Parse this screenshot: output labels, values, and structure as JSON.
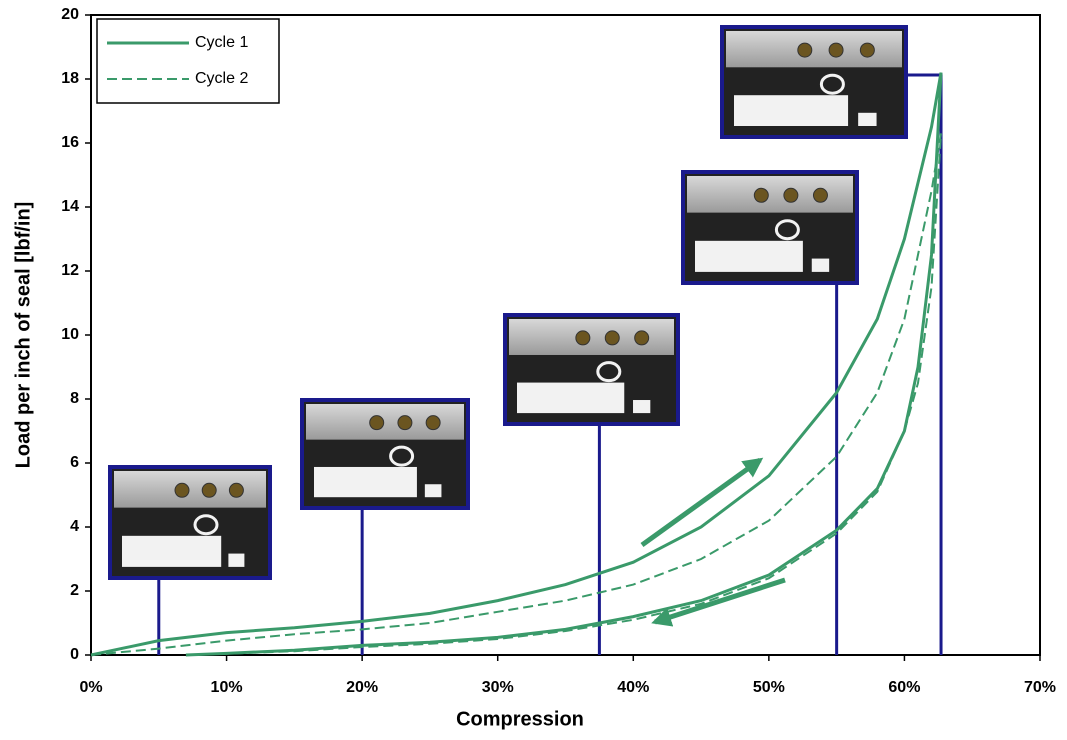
{
  "chart_data": {
    "type": "line",
    "x_label": "Compression",
    "y_label": "Load per inch of seal [lbf/in]",
    "xlim": [
      0,
      70
    ],
    "ylim": [
      0,
      20
    ],
    "xticks": [
      {
        "value": 0,
        "label": "0%"
      },
      {
        "value": 10,
        "label": "10%"
      },
      {
        "value": 20,
        "label": "20%"
      },
      {
        "value": 30,
        "label": "30%"
      },
      {
        "value": 40,
        "label": "40%"
      },
      {
        "value": 50,
        "label": "50%"
      },
      {
        "value": 60,
        "label": "60%"
      },
      {
        "value": 70,
        "label": "70%"
      }
    ],
    "yticks": [
      0,
      2,
      4,
      6,
      8,
      10,
      12,
      14,
      16,
      18,
      20
    ],
    "markers": [
      5,
      20,
      37.5,
      55,
      62.7
    ],
    "marker_color": "#1a1a8c",
    "legend_position": "upper left",
    "series": [
      {
        "name": "Cycle 1",
        "color": "#3a9a6a",
        "dash": "solid",
        "x": [
          0,
          5,
          10,
          15,
          20,
          25,
          30,
          35,
          40,
          45,
          50,
          55,
          58,
          60,
          62,
          62.7,
          62,
          61,
          60,
          58,
          55,
          50,
          45,
          40,
          35,
          30,
          25,
          20,
          15,
          10,
          7
        ],
        "values": [
          0,
          0.45,
          0.7,
          0.85,
          1.05,
          1.3,
          1.7,
          2.2,
          2.9,
          4.0,
          5.6,
          8.2,
          10.5,
          13,
          16.5,
          18.2,
          12.5,
          9,
          7,
          5.2,
          3.9,
          2.5,
          1.7,
          1.2,
          0.8,
          0.55,
          0.4,
          0.3,
          0.15,
          0.05,
          0
        ]
      },
      {
        "name": "Cycle 2",
        "color": "#3a9a6a",
        "dash": "dashed",
        "x": [
          0,
          5,
          10,
          15,
          20,
          25,
          30,
          35,
          40,
          45,
          50,
          55,
          58,
          60,
          62,
          62.7,
          62,
          61,
          60,
          58,
          55,
          50,
          45,
          40,
          35,
          30,
          25,
          20,
          15,
          10,
          7
        ],
        "values": [
          0,
          0.2,
          0.45,
          0.65,
          0.8,
          1.0,
          1.35,
          1.7,
          2.2,
          3.0,
          4.2,
          6.2,
          8.2,
          10.5,
          14.5,
          16.3,
          11.5,
          8.5,
          7,
          5.1,
          3.8,
          2.4,
          1.6,
          1.1,
          0.75,
          0.5,
          0.35,
          0.25,
          0.12,
          0.04,
          0
        ]
      }
    ]
  }
}
